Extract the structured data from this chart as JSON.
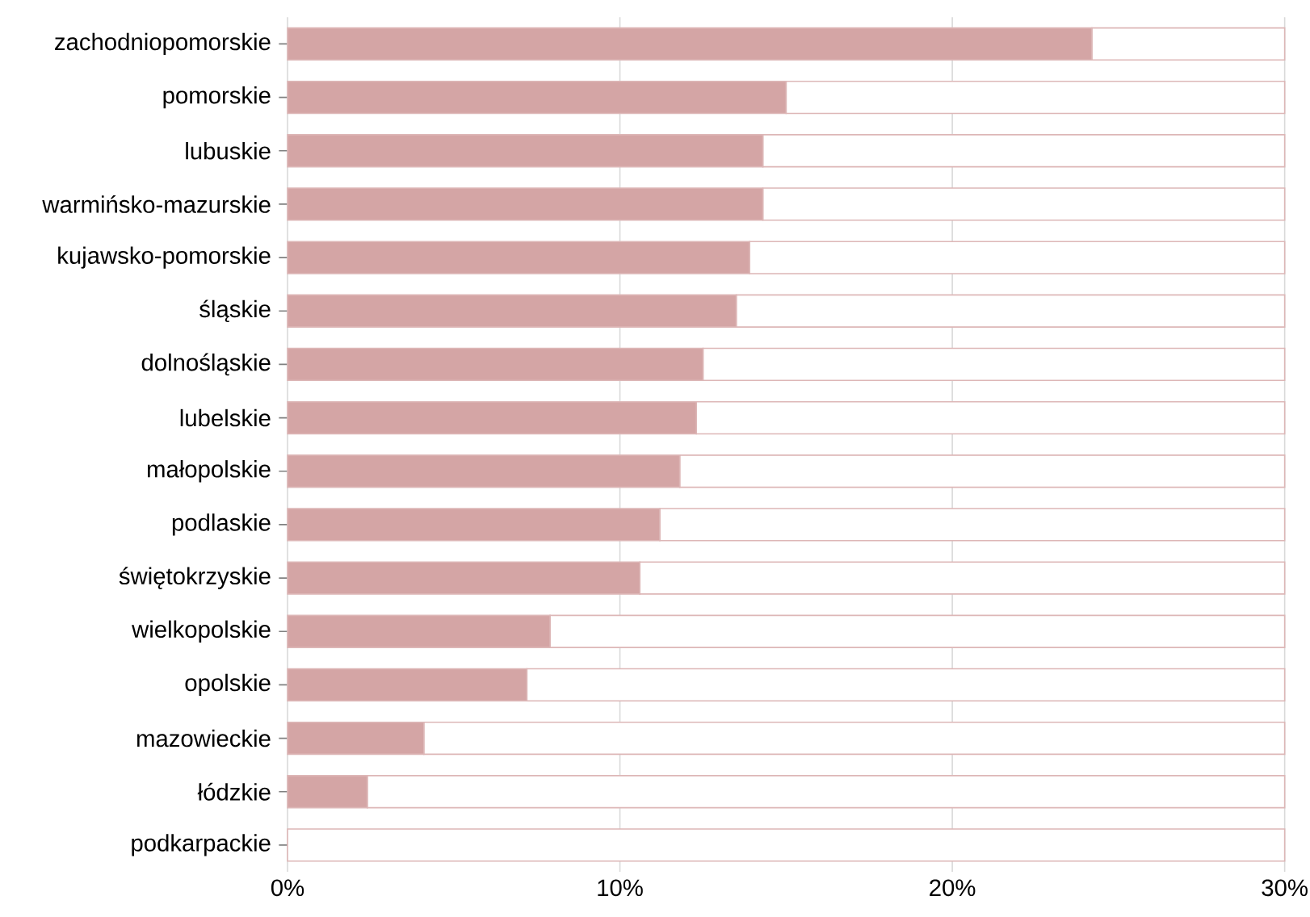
{
  "chart_data": {
    "type": "bar",
    "orientation": "horizontal",
    "stacked": true,
    "categories": [
      "zachodniopomorskie",
      "pomorskie",
      "lubuskie",
      "warmińsko-mazurskie",
      "kujawsko-pomorskie",
      "śląskie",
      "dolnośląskie",
      "lubelskie",
      "małopolskie",
      "podlaskie",
      "świętokrzyskie",
      "wielkopolskie",
      "opolskie",
      "mazowieckie",
      "łódzkie",
      "podkarpackie"
    ],
    "series": [
      {
        "color": "#d4a5a5",
        "values": [
          24.2,
          15.0,
          14.3,
          14.3,
          13.9,
          13.5,
          12.5,
          12.3,
          11.8,
          11.2,
          10.6,
          7.9,
          7.2,
          4.1,
          2.4,
          0
        ]
      },
      {
        "color": "#ffffff",
        "values": [
          5.8,
          15.0,
          15.7,
          15.7,
          16.1,
          16.5,
          17.5,
          17.7,
          18.2,
          18.8,
          19.4,
          22.1,
          22.8,
          25.9,
          27.6,
          30
        ]
      }
    ],
    "xlim": [
      0,
      30
    ],
    "xticks": [
      {
        "value": 0,
        "label": "0%"
      },
      {
        "value": 10,
        "label": "10%"
      },
      {
        "value": 20,
        "label": "20%"
      },
      {
        "value": 30,
        "label": "30%"
      }
    ],
    "grid": "x"
  }
}
